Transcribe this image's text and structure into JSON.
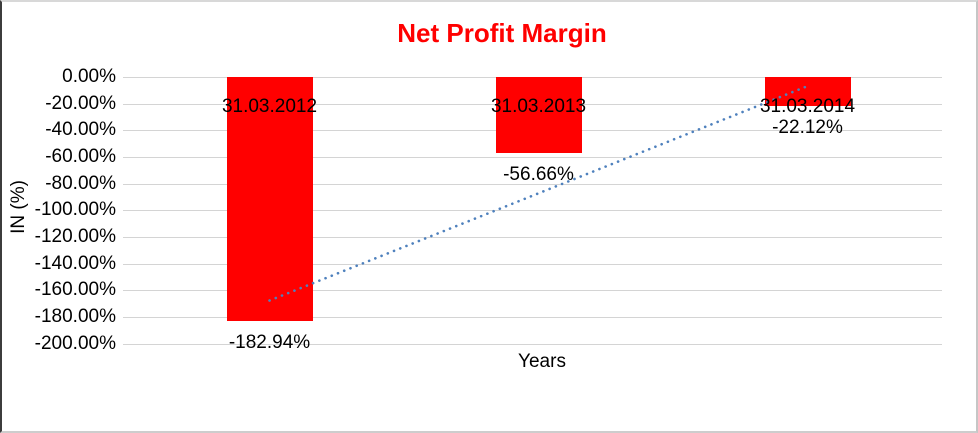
{
  "window": {
    "background_color": "#ffffff"
  },
  "chart_data": {
    "type": "bar",
    "title": "Net Profit Margin",
    "title_color": "#ff0000",
    "categories": [
      "31.03.2012",
      "31.03.2013",
      "31.03.2014"
    ],
    "values": [
      -182.94,
      -56.66,
      -22.12
    ],
    "data_labels": [
      "-182.94%",
      "-56.66%",
      "-22.12%"
    ],
    "xlabel": "Years",
    "ylabel": "IN (%)",
    "ylim": [
      -200,
      0
    ],
    "y_tick_step": 20,
    "y_tick_labels": [
      "0.00%",
      "-20.00%",
      "-40.00%",
      "-60.00%",
      "-80.00%",
      "-100.00%",
      "-120.00%",
      "-140.00%",
      "-160.00%",
      "-180.00%",
      "-200.00%"
    ],
    "bar_color": "#ff0000",
    "grid": true,
    "gridline_color": "#d4d4d4",
    "legend": "none",
    "trendline": {
      "type": "linear",
      "style": "dotted",
      "color": "#4f81bd"
    }
  }
}
